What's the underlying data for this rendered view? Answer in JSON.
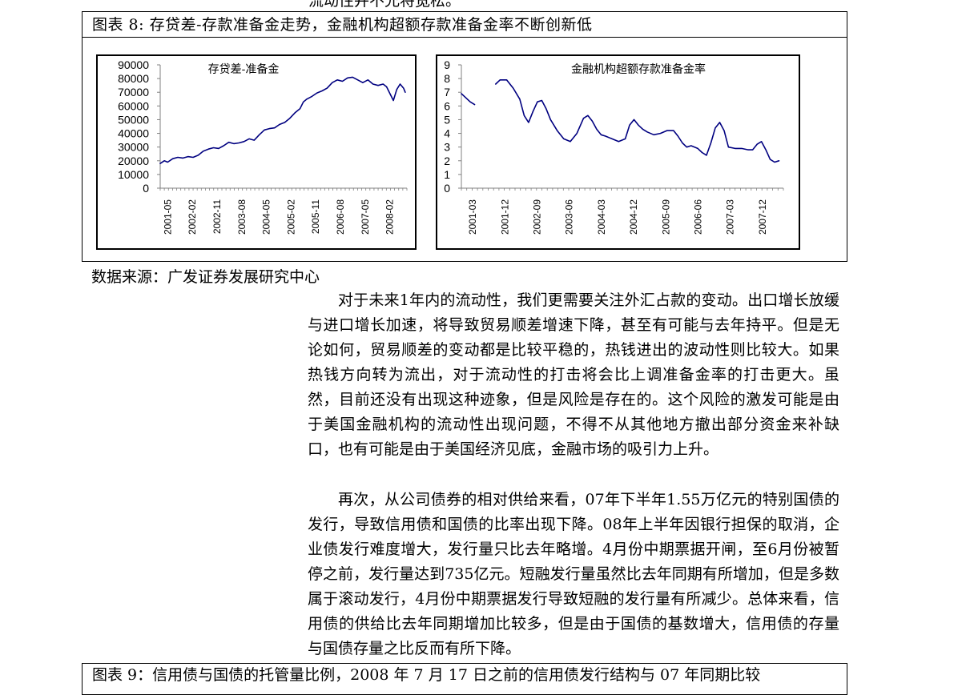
{
  "page": {
    "top_fragment": "流动性并不允将宽松。",
    "figure": {
      "title": "图表 8: 存贷差-存款准备金走势，金融机构超额存款准备金率不断创新低",
      "source": "数据来源：广发证券发展研究中心"
    },
    "paragraphs": [
      "对于未来1年内的流动性，我们更需要关注外汇占款的变动。出口增长放缓与进口增长加速，将导致贸易顺差增速下降，甚至有可能与去年持平。但是无论如何，贸易顺差的变动都是比较平稳的，热钱进出的波动性则比较大。如果热钱方向转为流出，对于流动性的打击将会比上调准备金率的打击更大。虽然，目前还没有出现这种迹象，但是风险是存在的。这个风险的激发可能是由于美国金融机构的流动性出现问题，不得不从其他地方撤出部分资金来补缺口，也有可能是由于美国经济见底，金融市场的吸引力上升。",
      "再次，从公司债券的相对供给来看，07年下半年1.55万亿元的特别国债的发行，导致信用债和国债的比率出现下降。08年上半年因银行担保的取消，企业债发行难度增大，发行量只比去年略增。4月份中期票据开闸，至6月份被暂停之前，发行量达到735亿元。短融发行量虽然比去年同期有所增加，但是多数属于滚动发行，4月份中期票据发行导致短融的发行量有所减少。总体来看，信用债的供给比去年同期增加比较多，但是由于国债的基数增大，信用债的存量与国债存量之比反而有所下降。"
    ],
    "next_figure_title": "图表 9：信用债与国债的托管量比例，2008 年 7 月 17 日之前的信用债发行结构与 07 年同期比较"
  },
  "chart_data": [
    {
      "type": "line",
      "title": "存贷差-准备金",
      "ylim": [
        0,
        90000
      ],
      "yticks": [
        "90000",
        "80000",
        "70000",
        "60000",
        "50000",
        "40000",
        "30000",
        "20000",
        "10000",
        "0"
      ],
      "xticks": [
        "2001-05",
        "2002-02",
        "2002-11",
        "2003-08",
        "2004-05",
        "2005-02",
        "2005-11",
        "2006-08",
        "2007-05",
        "2008-02"
      ],
      "x_range": [
        2001.33,
        2008.6
      ],
      "series": [
        {
          "color": "#000080",
          "x": [
            2001.33,
            2001.45,
            2001.55,
            2001.7,
            2001.85,
            2002.0,
            2002.15,
            2002.3,
            2002.45,
            2002.6,
            2002.75,
            2002.9,
            2003.05,
            2003.2,
            2003.35,
            2003.5,
            2003.65,
            2003.8,
            2003.95,
            2004.1,
            2004.25,
            2004.4,
            2004.55,
            2004.7,
            2004.85,
            2005.0,
            2005.15,
            2005.3,
            2005.45,
            2005.55,
            2005.65,
            2005.8,
            2005.95,
            2006.1,
            2006.25,
            2006.4,
            2006.55,
            2006.7,
            2006.85,
            2007.0,
            2007.15,
            2007.3,
            2007.45,
            2007.6,
            2007.75,
            2007.9,
            2008.0,
            2008.1,
            2008.2,
            2008.3,
            2008.4,
            2008.5,
            2008.55
          ],
          "y": [
            18000,
            20000,
            19000,
            21500,
            22500,
            22000,
            23000,
            22500,
            24000,
            27000,
            28500,
            29500,
            29000,
            31000,
            33500,
            32500,
            33000,
            34000,
            36000,
            35000,
            39000,
            42500,
            43500,
            44000,
            46500,
            48000,
            51000,
            55000,
            58000,
            63000,
            65000,
            67000,
            69500,
            71000,
            73000,
            77000,
            79000,
            78000,
            80500,
            81000,
            79000,
            77000,
            79000,
            76000,
            75000,
            76000,
            74000,
            69000,
            64000,
            72000,
            76000,
            73000,
            70000
          ]
        }
      ]
    },
    {
      "type": "line",
      "title": "金融机构超额存款准备金率",
      "ylim": [
        0,
        9
      ],
      "yticks": [
        "9",
        "8",
        "7",
        "6",
        "5",
        "4",
        "3",
        "2",
        "1",
        "0"
      ],
      "xticks": [
        "2001-03",
        "2001-12",
        "2002-09",
        "2003-06",
        "2004-03",
        "2004-12",
        "2005-09",
        "2006-06",
        "2007-03",
        "2007-12"
      ],
      "x_range": [
        2001.17,
        2008.5
      ],
      "series": [
        {
          "color": "#000080",
          "segments": [
            {
              "x": [
                2001.17,
                2001.27,
                2001.37,
                2001.47
              ],
              "y": [
                6.9,
                6.6,
                6.3,
                6.1
              ]
            },
            {
              "x": [
                2001.95,
                2002.05,
                2002.2,
                2002.35,
                2002.5,
                2002.6,
                2002.7,
                2002.8,
                2002.9,
                2003.0,
                2003.1,
                2003.2,
                2003.35,
                2003.5,
                2003.65,
                2003.8,
                2003.95,
                2004.05,
                2004.15,
                2004.25,
                2004.35,
                2004.45,
                2004.6,
                2004.75,
                2004.9,
                2005.0,
                2005.1,
                2005.2,
                2005.3,
                2005.4,
                2005.55,
                2005.7,
                2005.85,
                2006.0,
                2006.1,
                2006.2,
                2006.3,
                2006.4,
                2006.55,
                2006.65,
                2006.75,
                2006.85,
                2006.95,
                2007.05,
                2007.15,
                2007.25,
                2007.4,
                2007.55,
                2007.7,
                2007.8,
                2007.9,
                2008.0,
                2008.1,
                2008.2,
                2008.3,
                2008.4
              ],
              "y": [
                7.6,
                7.9,
                7.9,
                7.3,
                6.5,
                5.3,
                4.8,
                5.6,
                6.3,
                6.4,
                5.8,
                5.0,
                4.2,
                3.6,
                3.4,
                4.0,
                5.1,
                5.3,
                4.9,
                4.3,
                3.9,
                3.8,
                3.6,
                3.4,
                3.6,
                4.6,
                5.0,
                4.6,
                4.3,
                4.1,
                3.9,
                4.0,
                4.2,
                4.2,
                3.8,
                3.3,
                3.0,
                3.1,
                2.9,
                2.6,
                2.4,
                3.3,
                4.4,
                4.8,
                4.2,
                3.0,
                2.9,
                2.9,
                2.8,
                2.8,
                3.2,
                3.4,
                2.8,
                2.1,
                1.9,
                2.0
              ]
            }
          ]
        }
      ]
    }
  ]
}
